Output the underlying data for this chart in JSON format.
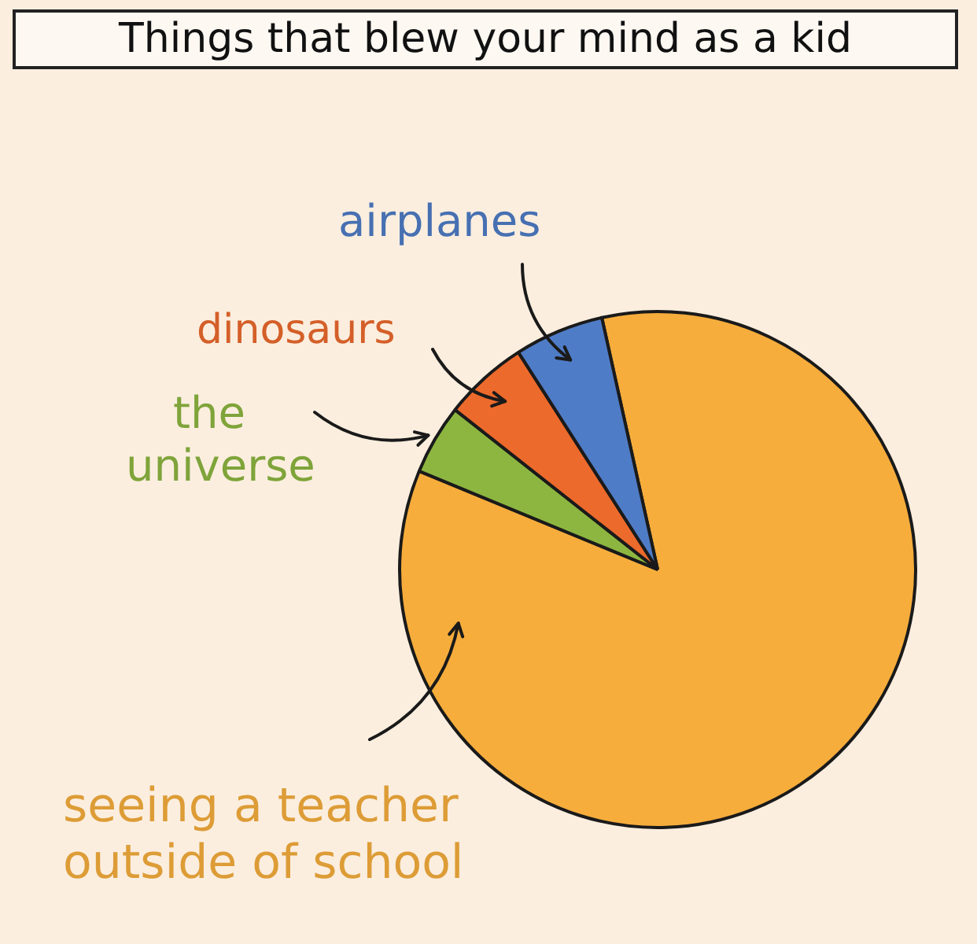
{
  "chart_data": {
    "type": "pie",
    "title": "Things that blew your mind as a kid",
    "categories": [
      "seeing a teacher outside of school",
      "the universe",
      "dinosaurs",
      "airplanes"
    ],
    "values": [
      84.7,
      4.4,
      5.3,
      5.6
    ],
    "colors": [
      "#f6ad3c",
      "#8db640",
      "#ec6a2c",
      "#4f7cc6"
    ]
  }
}
